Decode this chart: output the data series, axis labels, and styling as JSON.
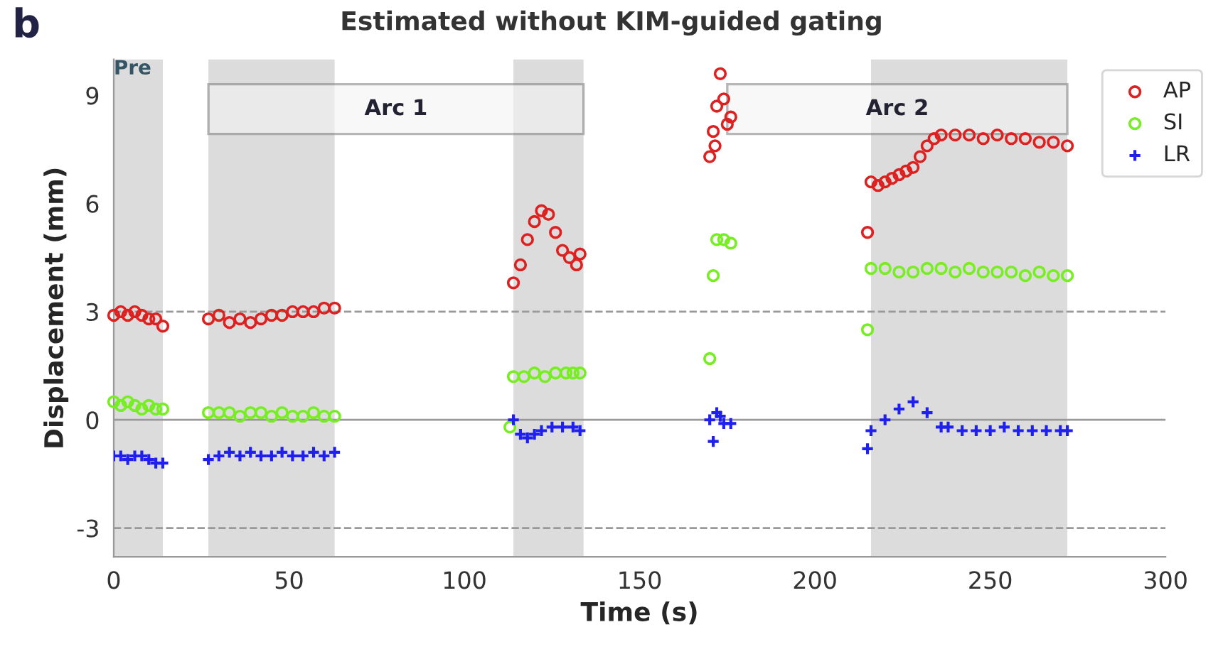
{
  "chart_data": {
    "type": "scatter",
    "title": "Estimated without KIM-guided gating",
    "xlabel": "Time (s)",
    "ylabel": "Displacement (mm)",
    "annotations": [
      "b"
    ],
    "xlim": [
      0,
      300
    ],
    "xticks": [
      0,
      50,
      100,
      150,
      200,
      250,
      300
    ],
    "ylim": [
      -3.8,
      10
    ],
    "yticks": [
      -3,
      0,
      3,
      6,
      9
    ],
    "grid": false,
    "legend": "top right",
    "bands": [
      {
        "axis": "x",
        "from": 0,
        "to": 14,
        "label": "Pre",
        "color": "#dcdcdc"
      },
      {
        "axis": "x",
        "from": 27,
        "to": 63,
        "color": "#dcdcdc"
      },
      {
        "axis": "x",
        "from": 114,
        "to": 134,
        "color": "#dcdcdc"
      },
      {
        "axis": "x",
        "from": 216,
        "to": 272,
        "color": "#dcdcdc"
      },
      {
        "axis": "x",
        "from": 27,
        "to": 134,
        "label": "Arc 1"
      },
      {
        "axis": "x",
        "from": 175,
        "to": 272,
        "label": "Arc 2"
      }
    ],
    "ref_lines": [
      {
        "axis": "y",
        "value": 3,
        "line_style": "dashed",
        "color": "#999999"
      },
      {
        "axis": "y",
        "value": -3,
        "line_style": "dashed",
        "color": "#999999"
      },
      {
        "axis": "y",
        "value": 0,
        "line_style": "solid",
        "color": "#999999"
      }
    ],
    "series": [
      {
        "name": "AP",
        "color": "#dd2020",
        "marker": "circle",
        "x": [
          0,
          2,
          4,
          6,
          8,
          10,
          12,
          14,
          27,
          30,
          33,
          36,
          39,
          42,
          45,
          48,
          51,
          54,
          57,
          60,
          63,
          114,
          116,
          118,
          120,
          122,
          124,
          126,
          128,
          130,
          132,
          133,
          170,
          171,
          171.5,
          172,
          173,
          174,
          175,
          176,
          215,
          216,
          218,
          220,
          222,
          224,
          226,
          228,
          230,
          232,
          234,
          236,
          240,
          244,
          248,
          252,
          256,
          260,
          264,
          268,
          272
        ],
        "values": [
          2.9,
          3.0,
          2.9,
          3.0,
          2.9,
          2.8,
          2.8,
          2.6,
          2.8,
          2.9,
          2.7,
          2.8,
          2.7,
          2.8,
          2.9,
          2.9,
          3.0,
          3.0,
          3.0,
          3.1,
          3.1,
          3.8,
          4.3,
          5.0,
          5.5,
          5.8,
          5.7,
          5.2,
          4.7,
          4.5,
          4.3,
          4.6,
          7.3,
          8.0,
          7.6,
          8.7,
          9.6,
          8.9,
          8.2,
          8.4,
          5.2,
          6.6,
          6.5,
          6.6,
          6.7,
          6.8,
          6.9,
          7.0,
          7.3,
          7.6,
          7.8,
          7.9,
          7.9,
          7.9,
          7.8,
          7.9,
          7.8,
          7.8,
          7.7,
          7.7,
          7.6
        ]
      },
      {
        "name": "SI",
        "color": "#77ee22",
        "marker": "circle",
        "x": [
          0,
          2,
          4,
          6,
          8,
          10,
          12,
          14,
          27,
          30,
          33,
          36,
          39,
          42,
          45,
          48,
          51,
          54,
          57,
          60,
          63,
          113,
          114,
          117,
          120,
          123,
          126,
          129,
          131,
          133,
          170,
          171,
          172,
          174,
          176,
          215,
          216,
          220,
          224,
          228,
          232,
          236,
          240,
          244,
          248,
          252,
          256,
          260,
          264,
          268,
          272
        ],
        "values": [
          0.5,
          0.4,
          0.5,
          0.4,
          0.3,
          0.4,
          0.3,
          0.3,
          0.2,
          0.2,
          0.2,
          0.1,
          0.2,
          0.2,
          0.1,
          0.2,
          0.1,
          0.1,
          0.2,
          0.1,
          0.1,
          -0.2,
          1.2,
          1.2,
          1.3,
          1.2,
          1.3,
          1.3,
          1.3,
          1.3,
          1.7,
          4.0,
          5.0,
          5.0,
          4.9,
          2.5,
          4.2,
          4.2,
          4.1,
          4.1,
          4.2,
          4.2,
          4.1,
          4.2,
          4.1,
          4.1,
          4.1,
          4.0,
          4.1,
          4.0,
          4.0
        ]
      },
      {
        "name": "LR",
        "color": "#2020ee",
        "marker": "cross",
        "x": [
          0,
          2,
          4,
          6,
          8,
          10,
          12,
          14,
          27,
          30,
          33,
          36,
          39,
          42,
          45,
          48,
          51,
          54,
          57,
          60,
          63,
          114,
          116,
          118,
          120,
          122,
          125,
          128,
          131,
          133,
          170,
          171,
          172,
          173,
          174,
          176,
          215,
          216,
          220,
          224,
          228,
          232,
          236,
          238,
          242,
          246,
          250,
          254,
          258,
          262,
          266,
          270,
          272
        ],
        "values": [
          -1.0,
          -1.0,
          -1.1,
          -1.0,
          -1.0,
          -1.1,
          -1.2,
          -1.2,
          -1.1,
          -1.0,
          -0.9,
          -1.0,
          -0.9,
          -1.0,
          -1.0,
          -0.9,
          -1.0,
          -1.0,
          -0.9,
          -1.0,
          -0.9,
          0.0,
          -0.4,
          -0.5,
          -0.4,
          -0.3,
          -0.2,
          -0.2,
          -0.2,
          -0.3,
          0.0,
          -0.6,
          0.2,
          0.1,
          -0.1,
          -0.1,
          -0.8,
          -0.3,
          0.0,
          0.3,
          0.5,
          0.2,
          -0.2,
          -0.2,
          -0.3,
          -0.3,
          -0.3,
          -0.2,
          -0.3,
          -0.3,
          -0.3,
          -0.3,
          -0.3
        ]
      }
    ]
  }
}
